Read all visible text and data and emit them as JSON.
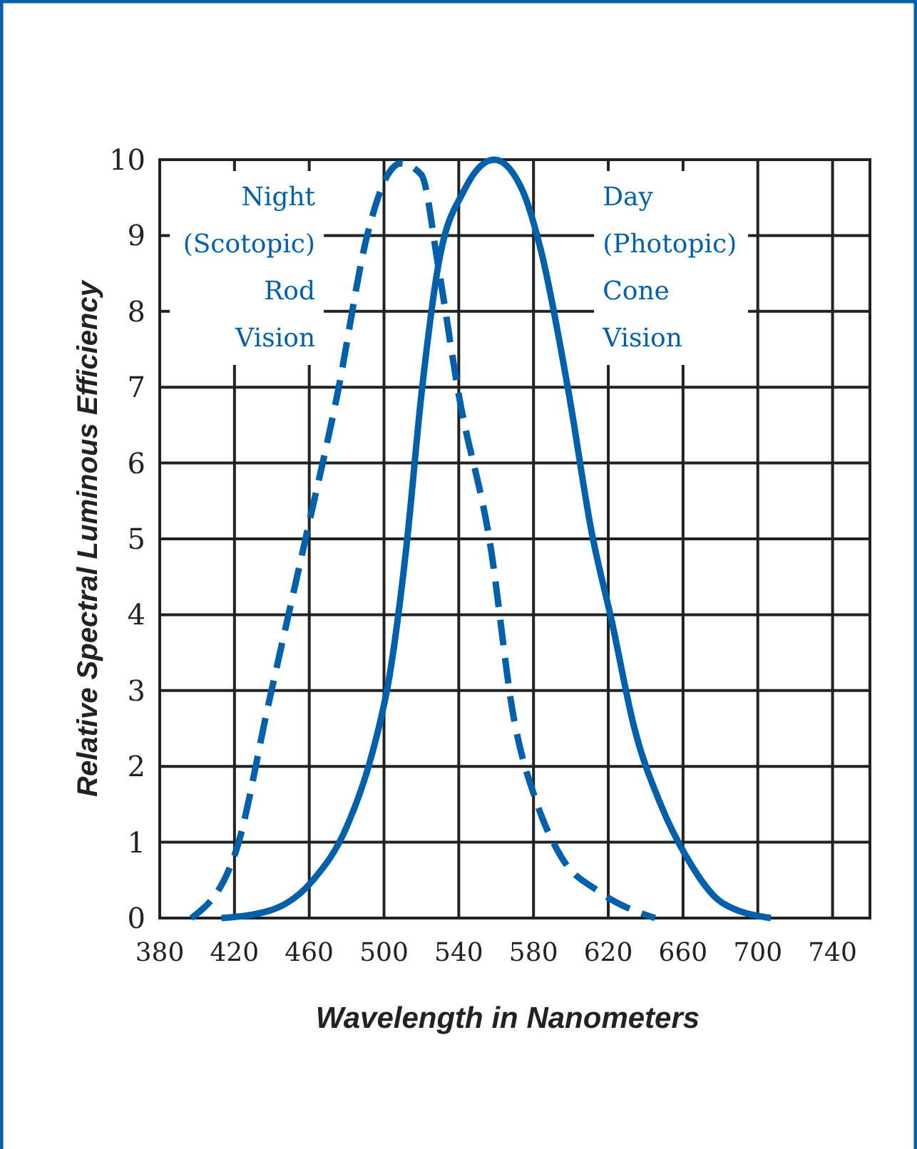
{
  "chart_data": {
    "type": "line",
    "xlabel": "Wavelength in Nanometers",
    "ylabel": "Relative Spectral Luminous Efficiency",
    "xlim": [
      380,
      760
    ],
    "xticks": [
      380,
      420,
      460,
      500,
      540,
      580,
      620,
      660,
      700,
      740
    ],
    "ylim": [
      0,
      10
    ],
    "yticks": [
      0,
      1,
      2,
      3,
      4,
      5,
      6,
      7,
      8,
      9,
      10
    ],
    "grid": true,
    "series": [
      {
        "name": "Night\n(Scotopic)\nRod\nVision",
        "color": "#0060ac",
        "line_style": "dashed",
        "x": [
          397,
          421,
          438,
          458,
          475,
          491,
          502,
          509,
          520,
          529,
          540,
          557,
          569,
          582,
          595,
          615,
          645
        ],
        "values": [
          0,
          0.9,
          2.8,
          5,
          6.9,
          9,
          9.8,
          9.95,
          9.8,
          8.6,
          6.9,
          4.9,
          2.7,
          1.5,
          0.8,
          0.35,
          0
        ]
      },
      {
        "name": "Day\n(Photopic)\nCone\nVision",
        "color": "#0060ac",
        "line_style": "solid",
        "x": [
          413,
          439,
          462,
          480,
          494,
          503,
          512,
          520,
          529,
          543,
          559,
          574,
          584,
          599,
          611,
          622,
          634,
          648,
          662,
          681,
          707
        ],
        "values": [
          0,
          0.1,
          0.5,
          1.2,
          2.2,
          3.2,
          4.9,
          6.9,
          8.6,
          9.6,
          10,
          9.6,
          8.8,
          6.9,
          5.1,
          3.9,
          2.5,
          1.5,
          0.8,
          0.2,
          0
        ]
      }
    ]
  }
}
